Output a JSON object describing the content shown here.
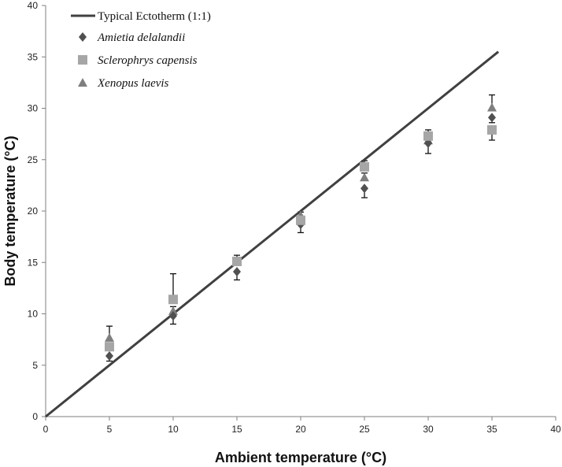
{
  "chart_data": {
    "type": "scatter",
    "xlabel": "Ambient temperature (°C)",
    "ylabel": "Body temperature (°C)",
    "xlim": [
      0,
      40
    ],
    "ylim": [
      0,
      40
    ],
    "x_ticks": [
      0,
      5,
      10,
      15,
      20,
      25,
      30,
      35,
      40
    ],
    "y_ticks": [
      0,
      5,
      10,
      15,
      20,
      25,
      30,
      35,
      40
    ],
    "grid": false,
    "legend_position": "top-left",
    "reference_line": {
      "name": "Typical Ectotherm (1:1)",
      "x": [
        0,
        35.5
      ],
      "y": [
        0,
        35.5
      ],
      "color": "#404040"
    },
    "series": [
      {
        "name": "Amietia delalandii",
        "marker": "diamond",
        "color": "#505050",
        "x": [
          5,
          10,
          15,
          20,
          25,
          30,
          35
        ],
        "y": [
          5.9,
          9.8,
          14.1,
          18.7,
          22.2,
          26.6,
          29.1
        ],
        "yerr_low": [
          0.5,
          0.8,
          0.8,
          0.8,
          0.9,
          1.0,
          0.5
        ],
        "yerr_high": [
          0,
          0,
          0,
          0,
          0,
          0,
          0
        ]
      },
      {
        "name": "Sclerophrys capensis",
        "marker": "square",
        "color": "#a6a6a6",
        "x": [
          5,
          10,
          15,
          20,
          25,
          30,
          35
        ],
        "y": [
          6.8,
          11.4,
          15.1,
          19.1,
          24.3,
          27.3,
          27.9
        ],
        "yerr_low": [
          0,
          0,
          0,
          0,
          0,
          0,
          1.0
        ],
        "yerr_high": [
          0,
          2.5,
          0.6,
          0,
          0.6,
          0.6,
          0
        ]
      },
      {
        "name": "Xenopus laevis",
        "marker": "triangle",
        "color": "#7f7f7f",
        "x": [
          5,
          10,
          15,
          20,
          25,
          30,
          35
        ],
        "y": [
          7.6,
          10.2,
          15.0,
          19.5,
          23.2,
          26.8,
          30.0
        ],
        "yerr_low": [
          0,
          0,
          0,
          0,
          0,
          0,
          0
        ],
        "yerr_high": [
          1.2,
          0.5,
          0.4,
          0.4,
          0.5,
          0.4,
          1.3
        ]
      }
    ]
  }
}
